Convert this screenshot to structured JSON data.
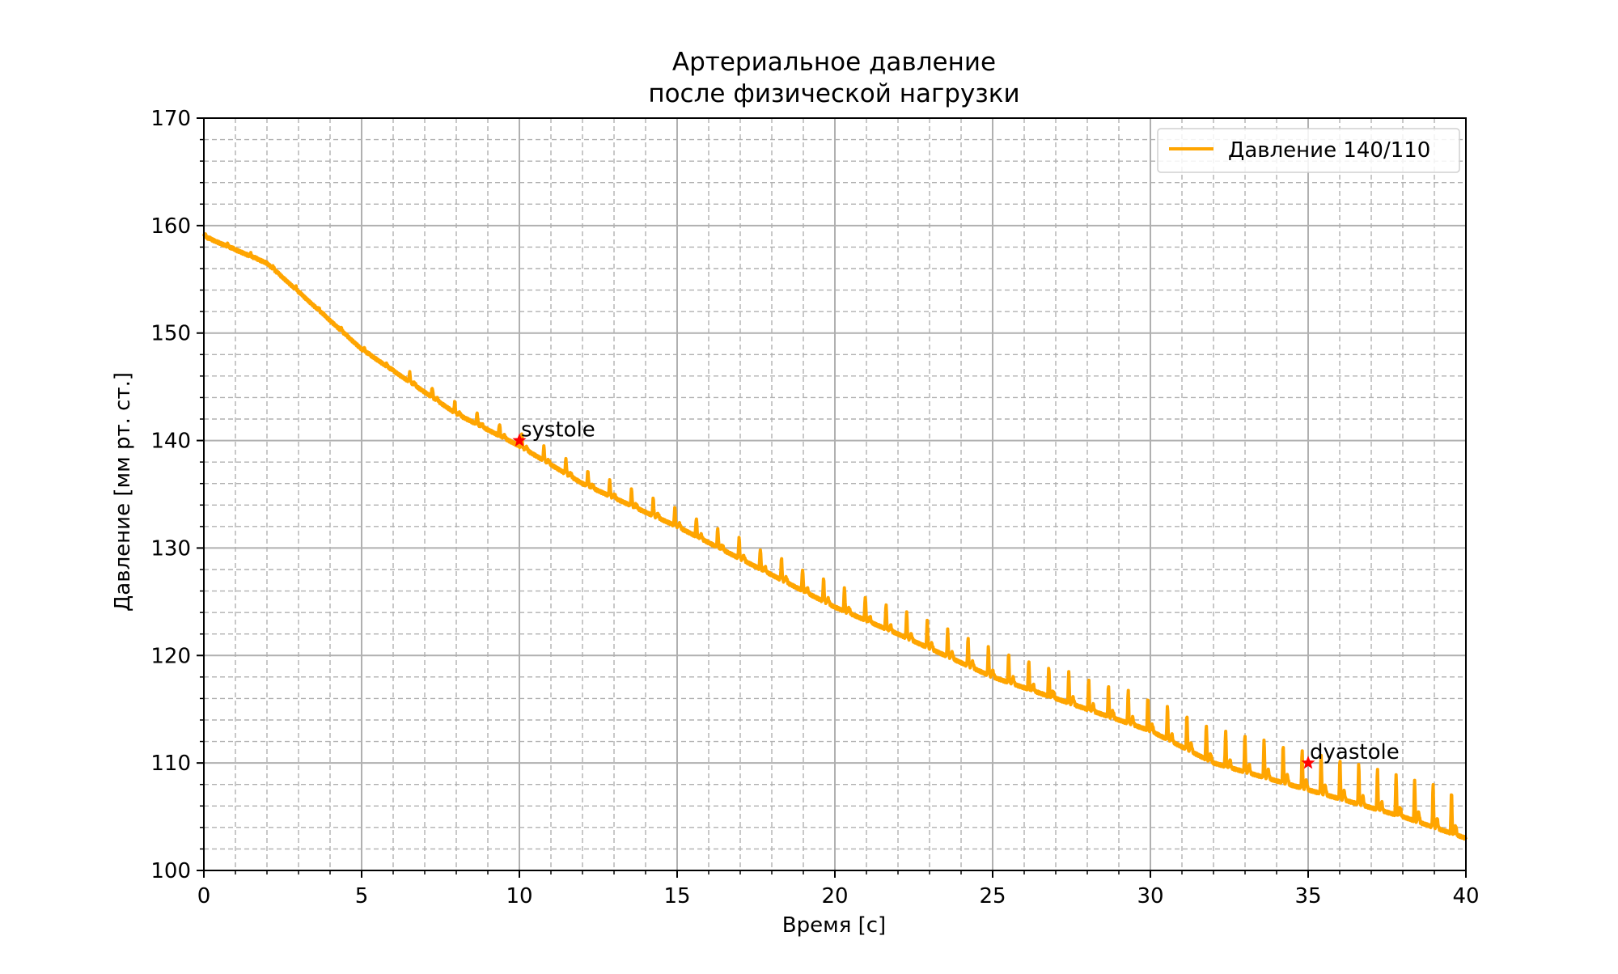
{
  "chart_data": {
    "type": "line",
    "title": [
      "Артериальное давление",
      "после физической нагрузки"
    ],
    "xlabel": "Время [с]",
    "ylabel": "Давление [мм рт. ст.]",
    "xlim": [
      0,
      40
    ],
    "ylim": [
      100,
      170
    ],
    "x_ticks": [
      0,
      5,
      10,
      15,
      20,
      25,
      30,
      35,
      40
    ],
    "y_ticks": [
      100,
      110,
      120,
      130,
      140,
      150,
      160,
      170
    ],
    "x_minor_step": 1,
    "y_minor_step": 2,
    "grid": "major and minor (minor dashed)",
    "legend_position": "top-right",
    "series": [
      {
        "name": "Давление 140/110",
        "color": "#ffa500",
        "x": [
          0,
          2,
          5,
          8,
          10,
          12,
          15,
          18,
          20,
          22,
          25,
          28,
          30,
          32,
          35,
          38,
          40
        ],
        "y": [
          159,
          156.5,
          148.5,
          142.5,
          139.5,
          136,
          132,
          127.5,
          124.5,
          122,
          118,
          115,
          113,
          110,
          107.5,
          105,
          103
        ],
        "pulse_start_time": 6,
        "pulse_amplitude_start": 0.8,
        "pulse_amplitude_end": 4.0,
        "pulse_period_start": 0.72,
        "pulse_period_end": 0.58
      }
    ],
    "annotations": [
      {
        "text": "systole",
        "x": 10,
        "y": 140,
        "marker": "star",
        "color": "#ff0000"
      },
      {
        "text": "dyastole",
        "x": 35,
        "y": 110,
        "marker": "star",
        "color": "#ff0000"
      }
    ]
  }
}
